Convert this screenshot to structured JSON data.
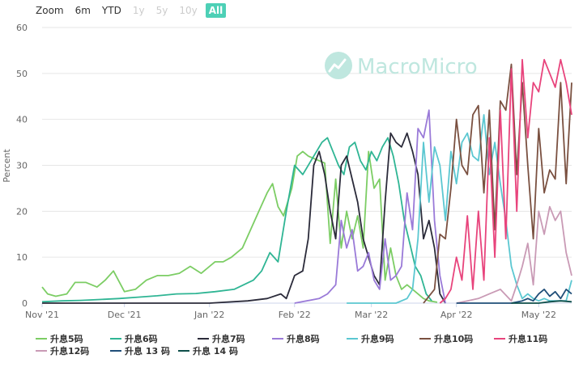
{
  "range_selector": {
    "buttons": [
      {
        "label": "Zoom",
        "state": "label"
      },
      {
        "label": "6m",
        "state": "normal"
      },
      {
        "label": "YTD",
        "state": "normal"
      },
      {
        "label": "1y",
        "state": "disabled"
      },
      {
        "label": "5y",
        "state": "disabled"
      },
      {
        "label": "10y",
        "state": "disabled"
      },
      {
        "label": "All",
        "state": "active"
      }
    ]
  },
  "watermark": {
    "text": "MacroMicro",
    "color": "#bfe7df"
  },
  "chart_data": {
    "type": "line",
    "ylabel": "Percent",
    "ylim": [
      0,
      60
    ],
    "yticks": [
      0,
      10,
      20,
      30,
      40,
      50,
      60
    ],
    "xlim": [
      "2021-11-01",
      "2022-05-13"
    ],
    "xticks": [
      {
        "date": "2021-11-01",
        "label": "Nov '21"
      },
      {
        "date": "2021-12-01",
        "label": "Dec '21"
      },
      {
        "date": "2022-01-01",
        "label": "Jan '22"
      },
      {
        "date": "2022-02-01",
        "label": "Feb '22"
      },
      {
        "date": "2022-03-01",
        "label": "Mar '22"
      },
      {
        "date": "2022-04-01",
        "label": "Apr '22"
      },
      {
        "date": "2022-05-01",
        "label": "May '22"
      }
    ],
    "grid": true,
    "legend_position": "bottom",
    "series": [
      {
        "name": "升息5码",
        "color": "#7ccd64",
        "x": [
          "2021-11-01",
          "2021-11-03",
          "2021-11-06",
          "2021-11-10",
          "2021-11-13",
          "2021-11-17",
          "2021-11-21",
          "2021-11-24",
          "2021-11-27",
          "2021-12-01",
          "2021-12-05",
          "2021-12-09",
          "2021-12-13",
          "2021-12-17",
          "2021-12-21",
          "2021-12-25",
          "2021-12-29",
          "2022-01-03",
          "2022-01-06",
          "2022-01-09",
          "2022-01-13",
          "2022-01-16",
          "2022-01-19",
          "2022-01-22",
          "2022-01-24",
          "2022-01-26",
          "2022-01-28",
          "2022-01-31",
          "2022-02-02",
          "2022-02-04",
          "2022-02-06",
          "2022-02-08",
          "2022-02-10",
          "2022-02-12",
          "2022-02-14",
          "2022-02-16",
          "2022-02-18",
          "2022-02-20",
          "2022-02-22",
          "2022-02-24",
          "2022-02-26",
          "2022-02-28",
          "2022-03-02",
          "2022-03-04",
          "2022-03-06",
          "2022-03-08",
          "2022-03-10",
          "2022-03-12",
          "2022-03-14",
          "2022-03-16",
          "2022-03-18",
          "2022-03-20",
          "2022-03-22",
          "2022-03-25"
        ],
        "y": [
          3.5,
          2,
          1.5,
          2,
          4.5,
          4.5,
          3.5,
          5,
          7,
          2.5,
          3,
          5,
          6,
          6,
          6.5,
          8,
          6.5,
          9,
          9,
          10,
          12,
          16,
          20,
          24,
          26,
          21,
          19,
          25,
          32,
          33,
          32,
          31.5,
          31,
          30.5,
          13,
          27,
          12,
          20,
          14,
          19,
          12,
          33,
          25,
          27,
          5,
          12,
          6,
          3,
          4,
          3,
          2,
          1,
          0.5,
          0.2
        ]
      },
      {
        "name": "升息6码",
        "color": "#2fb594",
        "x": [
          "2021-11-01",
          "2021-11-08",
          "2021-11-15",
          "2021-11-22",
          "2021-11-29",
          "2021-12-06",
          "2021-12-13",
          "2021-12-20",
          "2021-12-27",
          "2022-01-03",
          "2022-01-10",
          "2022-01-17",
          "2022-01-20",
          "2022-01-23",
          "2022-01-26",
          "2022-01-29",
          "2022-02-01",
          "2022-02-04",
          "2022-02-07",
          "2022-02-09",
          "2022-02-11",
          "2022-02-13",
          "2022-02-15",
          "2022-02-17",
          "2022-02-19",
          "2022-02-21",
          "2022-02-23",
          "2022-02-25",
          "2022-02-27",
          "2022-03-01",
          "2022-03-03",
          "2022-03-05",
          "2022-03-07",
          "2022-03-09",
          "2022-03-11",
          "2022-03-13",
          "2022-03-15",
          "2022-03-17",
          "2022-03-19",
          "2022-03-21",
          "2022-03-23"
        ],
        "y": [
          0.3,
          0.5,
          0.6,
          0.8,
          1,
          1.3,
          1.6,
          2,
          2.1,
          2.5,
          3,
          5,
          7,
          11,
          9,
          20,
          30,
          28,
          31,
          33,
          35,
          36,
          33,
          30,
          28,
          34,
          35,
          31,
          29,
          33,
          31,
          34,
          36,
          32,
          26,
          18,
          13,
          8,
          6,
          2,
          0.5
        ]
      },
      {
        "name": "升息7码",
        "color": "#2b2b3a",
        "x": [
          "2021-11-01",
          "2021-12-01",
          "2022-01-01",
          "2022-01-15",
          "2022-01-22",
          "2022-01-27",
          "2022-01-29",
          "2022-02-01",
          "2022-02-04",
          "2022-02-06",
          "2022-02-08",
          "2022-02-10",
          "2022-02-12",
          "2022-02-14",
          "2022-02-16",
          "2022-02-18",
          "2022-02-20",
          "2022-02-22",
          "2022-02-24",
          "2022-02-26",
          "2022-02-28",
          "2022-03-02",
          "2022-03-04",
          "2022-03-06",
          "2022-03-08",
          "2022-03-10",
          "2022-03-12",
          "2022-03-14",
          "2022-03-16",
          "2022-03-18",
          "2022-03-20",
          "2022-03-22",
          "2022-03-24",
          "2022-03-26",
          "2022-03-28"
        ],
        "y": [
          0,
          0,
          0,
          0.5,
          1,
          2,
          1,
          6,
          7,
          14,
          30,
          33,
          28,
          20,
          14,
          30,
          32,
          27,
          22,
          14,
          10,
          6,
          4,
          22,
          37,
          35,
          34,
          37,
          33,
          28,
          14,
          18,
          12,
          2,
          0
        ]
      },
      {
        "name": "升息8码",
        "color": "#9a7ad8",
        "x": [
          "2022-02-01",
          "2022-02-10",
          "2022-02-13",
          "2022-02-16",
          "2022-02-18",
          "2022-02-20",
          "2022-02-22",
          "2022-02-24",
          "2022-02-26",
          "2022-02-28",
          "2022-03-02",
          "2022-03-04",
          "2022-03-06",
          "2022-03-08",
          "2022-03-10",
          "2022-03-12",
          "2022-03-14",
          "2022-03-16",
          "2022-03-18",
          "2022-03-20",
          "2022-03-22",
          "2022-03-24",
          "2022-03-26",
          "2022-03-28"
        ],
        "y": [
          0,
          1,
          2,
          4,
          18,
          12,
          16,
          7,
          8,
          11,
          5,
          3,
          14,
          5,
          6,
          8,
          24,
          16,
          38,
          36,
          42,
          18,
          6,
          0
        ]
      },
      {
        "name": "升息9码",
        "color": "#5bc7d1",
        "x": [
          "2022-02-20",
          "2022-03-01",
          "2022-03-10",
          "2022-03-14",
          "2022-03-16",
          "2022-03-18",
          "2022-03-20",
          "2022-03-22",
          "2022-03-24",
          "2022-03-26",
          "2022-03-28",
          "2022-03-30",
          "2022-04-01",
          "2022-04-03",
          "2022-04-05",
          "2022-04-07",
          "2022-04-09",
          "2022-04-11",
          "2022-04-13",
          "2022-04-15",
          "2022-04-17",
          "2022-04-19",
          "2022-04-21",
          "2022-04-23",
          "2022-04-25",
          "2022-04-27",
          "2022-04-29",
          "2022-05-01",
          "2022-05-03",
          "2022-05-05",
          "2022-05-07",
          "2022-05-09",
          "2022-05-11",
          "2022-05-13"
        ],
        "y": [
          0,
          0,
          0,
          1,
          3,
          14,
          35,
          22,
          34,
          30,
          18,
          33,
          26,
          35,
          37,
          32,
          31,
          41,
          28,
          35,
          26,
          18,
          8,
          4,
          1,
          2,
          1,
          0.5,
          1,
          0.5,
          0.5,
          0.5,
          0.5,
          5
        ]
      },
      {
        "name": "升息10码",
        "color": "#7a5040",
        "x": [
          "2022-03-20",
          "2022-03-24",
          "2022-03-26",
          "2022-03-28",
          "2022-03-30",
          "2022-04-01",
          "2022-04-03",
          "2022-04-05",
          "2022-04-07",
          "2022-04-09",
          "2022-04-11",
          "2022-04-13",
          "2022-04-15",
          "2022-04-17",
          "2022-04-19",
          "2022-04-21",
          "2022-04-23",
          "2022-04-25",
          "2022-04-27",
          "2022-04-29",
          "2022-05-01",
          "2022-05-03",
          "2022-05-05",
          "2022-05-07",
          "2022-05-09",
          "2022-05-11",
          "2022-05-13"
        ],
        "y": [
          0,
          3,
          15,
          14,
          25,
          40,
          30,
          28,
          41,
          43,
          24,
          42,
          16,
          44,
          42,
          52,
          28,
          48,
          30,
          14,
          38,
          24,
          29,
          27,
          48,
          26,
          48
        ]
      },
      {
        "name": "升息11码",
        "color": "#e8447c",
        "x": [
          "2022-03-26",
          "2022-03-28",
          "2022-03-30",
          "2022-04-01",
          "2022-04-03",
          "2022-04-05",
          "2022-04-07",
          "2022-04-09",
          "2022-04-11",
          "2022-04-13",
          "2022-04-15",
          "2022-04-17",
          "2022-04-19",
          "2022-04-21",
          "2022-04-23",
          "2022-04-25",
          "2022-04-27",
          "2022-04-29",
          "2022-05-01",
          "2022-05-03",
          "2022-05-05",
          "2022-05-07",
          "2022-05-09",
          "2022-05-11",
          "2022-05-13"
        ],
        "y": [
          0,
          1,
          3,
          10,
          5,
          19,
          3,
          20,
          5,
          36,
          10,
          42,
          14,
          51,
          20,
          53,
          36,
          48,
          46,
          53,
          50,
          47,
          53,
          48,
          41
        ]
      },
      {
        "name": "升息12码",
        "color": "#c99ab5",
        "x": [
          "2022-04-01",
          "2022-04-05",
          "2022-04-09",
          "2022-04-13",
          "2022-04-17",
          "2022-04-21",
          "2022-04-23",
          "2022-04-25",
          "2022-04-27",
          "2022-04-29",
          "2022-05-01",
          "2022-05-03",
          "2022-05-05",
          "2022-05-07",
          "2022-05-09",
          "2022-05-11",
          "2022-05-13"
        ],
        "y": [
          0,
          0.5,
          1,
          2,
          3,
          0.5,
          4,
          8,
          13,
          4,
          20,
          15,
          21,
          18,
          20,
          11,
          6
        ]
      },
      {
        "name": "升息 13 码",
        "color": "#1f4e78",
        "x": [
          "2022-04-01",
          "2022-04-21",
          "2022-04-25",
          "2022-04-27",
          "2022-04-29",
          "2022-05-01",
          "2022-05-03",
          "2022-05-05",
          "2022-05-07",
          "2022-05-09",
          "2022-05-11",
          "2022-05-13"
        ],
        "y": [
          0,
          0,
          0.5,
          1,
          0.5,
          2,
          3,
          1.5,
          2.5,
          1,
          3,
          2
        ]
      },
      {
        "name": "升息 14 码",
        "color": "#0e4e4a",
        "x": [
          "2022-04-21",
          "2022-05-01",
          "2022-05-05",
          "2022-05-09",
          "2022-05-13"
        ],
        "y": [
          0,
          0,
          0.3,
          0.5,
          0.3
        ]
      }
    ]
  }
}
